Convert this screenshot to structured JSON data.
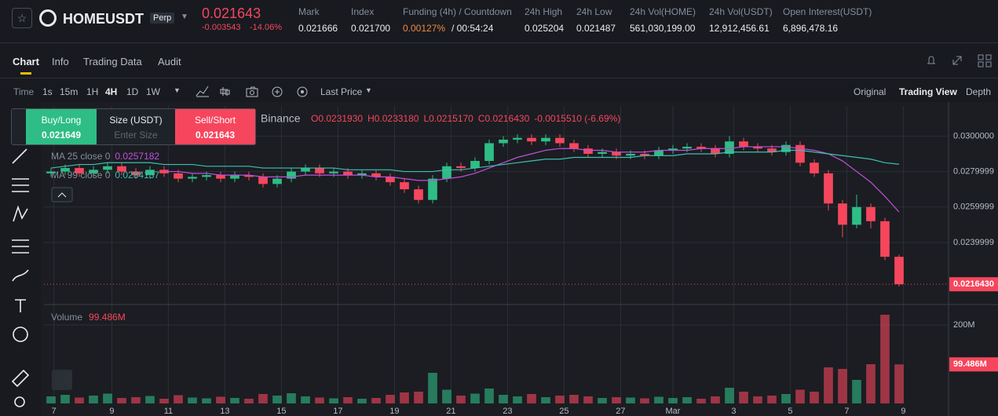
{
  "header": {
    "symbol": "HOMEUSDT",
    "badge": "Perp",
    "price": "0.021643",
    "change": "-0.003543",
    "change_pct": "-14.06%",
    "stats": [
      {
        "label": "Mark",
        "value": "0.021666"
      },
      {
        "label": "Index",
        "value": "0.021700"
      },
      {
        "label": "Funding (4h) / Countdown",
        "value": "0.00127%",
        "extra": "/ 00:54:24"
      },
      {
        "label": "24h High",
        "value": "0.025204"
      },
      {
        "label": "24h Low",
        "value": "0.021487"
      },
      {
        "label": "24h Vol(HOME)",
        "value": "561,030,199.00"
      },
      {
        "label": "24h Vol(USDT)",
        "value": "12,912,456.61"
      },
      {
        "label": "Open Interest(USDT)",
        "value": "6,896,478.16"
      }
    ]
  },
  "tabs": [
    "Chart",
    "Info",
    "Trading Data",
    "Audit"
  ],
  "toolbar": {
    "time": "Time",
    "intervals": [
      "1s",
      "15m",
      "1H",
      "4H",
      "1D",
      "1W"
    ],
    "price_type": "Last Price",
    "views": [
      "Original",
      "Trading View",
      "Depth"
    ]
  },
  "order_panel": {
    "buy": "Buy/Long",
    "buy_price": "0.021649",
    "size": "Size (USDT)",
    "size_placeholder": "Enter Size",
    "sell": "Sell/Short",
    "sell_price": "0.021643"
  },
  "chart_data": {
    "type": "candlestick",
    "up_color": "#2ebd85",
    "down_color": "#f6465d",
    "grid": true,
    "open": [
      0.0279,
      0.028,
      0.0282,
      0.0279,
      0.0281,
      0.0283,
      0.028,
      0.0278,
      0.0281,
      0.0279,
      0.0276,
      0.0277,
      0.0278,
      0.0276,
      0.0278,
      0.0277,
      0.0273,
      0.0276,
      0.028,
      0.0282,
      0.0279,
      0.028,
      0.0278,
      0.0279,
      0.0277,
      0.0274,
      0.027,
      0.0264,
      0.0276,
      0.0283,
      0.0282,
      0.0286,
      0.0296,
      0.0298,
      0.0299,
      0.0297,
      0.0299,
      0.0296,
      0.0293,
      0.029,
      0.0291,
      0.0289,
      0.029,
      0.0289,
      0.0292,
      0.0293,
      0.0294,
      0.0293,
      0.029,
      0.0297,
      0.0294,
      0.0293,
      0.0291,
      0.0295,
      0.0285,
      0.0279,
      0.0262,
      0.025,
      0.026,
      0.0252,
      0.023193
    ],
    "high": [
      0.0282,
      0.0284,
      0.0284,
      0.0283,
      0.0285,
      0.0285,
      0.0282,
      0.0283,
      0.0283,
      0.0281,
      0.0279,
      0.028,
      0.028,
      0.028,
      0.028,
      0.0279,
      0.0278,
      0.0282,
      0.0284,
      0.0284,
      0.0282,
      0.0282,
      0.0281,
      0.0281,
      0.0279,
      0.0276,
      0.0272,
      0.0278,
      0.0285,
      0.0285,
      0.0288,
      0.0298,
      0.03,
      0.0301,
      0.0301,
      0.0301,
      0.0301,
      0.0298,
      0.0295,
      0.0293,
      0.0293,
      0.0292,
      0.0292,
      0.0294,
      0.0295,
      0.0296,
      0.0296,
      0.0295,
      0.03,
      0.0299,
      0.0296,
      0.0295,
      0.0297,
      0.0297,
      0.0287,
      0.0281,
      0.0264,
      0.0267,
      0.0262,
      0.0254,
      0.023318
    ],
    "low": [
      0.0277,
      0.0278,
      0.0277,
      0.0277,
      0.0279,
      0.0278,
      0.0276,
      0.0276,
      0.0277,
      0.0274,
      0.0274,
      0.0275,
      0.0274,
      0.0274,
      0.0275,
      0.0271,
      0.0271,
      0.0274,
      0.0278,
      0.0277,
      0.0277,
      0.0276,
      0.0276,
      0.0275,
      0.0272,
      0.0268,
      0.0262,
      0.0262,
      0.0274,
      0.028,
      0.028,
      0.0284,
      0.0294,
      0.0296,
      0.0295,
      0.0295,
      0.0294,
      0.0291,
      0.0288,
      0.0288,
      0.0287,
      0.0287,
      0.0287,
      0.0287,
      0.029,
      0.0291,
      0.0291,
      0.0288,
      0.0288,
      0.0292,
      0.0291,
      0.0289,
      0.0289,
      0.0283,
      0.0277,
      0.0258,
      0.0243,
      0.0248,
      0.0248,
      0.023,
      0.021517
    ],
    "close": [
      0.028,
      0.0282,
      0.0279,
      0.0281,
      0.0283,
      0.028,
      0.0278,
      0.0281,
      0.0279,
      0.0276,
      0.0277,
      0.0278,
      0.0276,
      0.0278,
      0.0277,
      0.0273,
      0.0276,
      0.028,
      0.0282,
      0.0279,
      0.028,
      0.0278,
      0.0279,
      0.0277,
      0.0274,
      0.027,
      0.0264,
      0.0276,
      0.0283,
      0.0282,
      0.0286,
      0.0296,
      0.0298,
      0.0299,
      0.0297,
      0.0299,
      0.0296,
      0.0293,
      0.029,
      0.0291,
      0.0289,
      0.029,
      0.0289,
      0.0292,
      0.0293,
      0.0294,
      0.0293,
      0.029,
      0.0297,
      0.0294,
      0.0293,
      0.0291,
      0.0295,
      0.0285,
      0.0279,
      0.0262,
      0.025,
      0.026,
      0.0252,
      0.023193,
      0.021643
    ],
    "xlim": [
      -0.5,
      63.5
    ],
    "xticks": [
      {
        "value": 0.2,
        "label": "7"
      },
      {
        "value": 4.3,
        "label": "9"
      },
      {
        "value": 8.3,
        "label": "11"
      },
      {
        "value": 12.3,
        "label": "13"
      },
      {
        "value": 16.3,
        "label": "15"
      },
      {
        "value": 20.3,
        "label": "17"
      },
      {
        "value": 24.3,
        "label": "19"
      },
      {
        "value": 28.3,
        "label": "21"
      },
      {
        "value": 32.3,
        "label": "23"
      },
      {
        "value": 36.3,
        "label": "25"
      },
      {
        "value": 40.3,
        "label": "27"
      },
      {
        "value": 44,
        "label": "Mar"
      },
      {
        "value": 48.3,
        "label": "3"
      },
      {
        "value": 52.3,
        "label": "5"
      },
      {
        "value": 56.3,
        "label": "7"
      },
      {
        "value": 60.3,
        "label": "9"
      }
    ],
    "ylim": [
      0.0205,
      0.0317
    ],
    "yticks": [
      {
        "value": 0.03,
        "label": "0.0300000"
      },
      0.0279999,
      0.0259999,
      0.0239999
    ],
    "last_price_label": "0.0216430",
    "legend_text": {
      "source": "Binance",
      "open": "O0.0231930",
      "high": "H0.0233180",
      "low": "L0.0215170",
      "close": "C0.0216430",
      "change": "-0.0015510 (-6.69%)"
    },
    "series": [
      {
        "name": "MA 25 close 0",
        "color": "#c150d9",
        "values": [
          null,
          null,
          null,
          null,
          null,
          null,
          null,
          null,
          0.028,
          0.028,
          0.0279,
          0.0279,
          0.0278,
          0.0278,
          0.0278,
          0.0277,
          0.0277,
          0.0277,
          0.0278,
          0.0278,
          0.0278,
          0.0278,
          0.0278,
          0.0277,
          0.0277,
          0.0276,
          0.0275,
          0.0275,
          0.0276,
          0.0277,
          0.0279,
          0.0282,
          0.0285,
          0.0288,
          0.029,
          0.0292,
          0.0293,
          0.0293,
          0.0292,
          0.0292,
          0.0291,
          0.0291,
          0.0291,
          0.0292,
          0.0292,
          0.0292,
          0.0293,
          0.0293,
          0.0293,
          0.0294,
          0.0294,
          0.0294,
          0.0294,
          0.0293,
          0.0292,
          0.029,
          0.0286,
          0.028,
          0.0274,
          0.0266,
          0.0257182
        ]
      },
      {
        "name": "MA 99 close 0",
        "color": "#3fbfb3",
        "values": [
          0.0282,
          0.0283,
          0.0284,
          0.0284,
          0.0285,
          0.0285,
          0.0285,
          0.0285,
          0.0284,
          0.0284,
          0.0284,
          0.0283,
          0.0283,
          0.0283,
          0.0283,
          0.0282,
          0.0282,
          0.0282,
          0.0282,
          0.0282,
          0.0282,
          0.0281,
          0.0281,
          0.0281,
          0.0281,
          0.028,
          0.028,
          0.028,
          0.0281,
          0.0281,
          0.0282,
          0.0283,
          0.0284,
          0.0285,
          0.0286,
          0.0287,
          0.0287,
          0.0288,
          0.0288,
          0.0288,
          0.0288,
          0.0288,
          0.0289,
          0.0289,
          0.0289,
          0.029,
          0.029,
          0.029,
          0.0291,
          0.0291,
          0.0291,
          0.0291,
          0.0292,
          0.0292,
          0.0291,
          0.029,
          0.0289,
          0.0288,
          0.0287,
          0.0285,
          0.0284137
        ]
      }
    ],
    "volume": {
      "name": "Volume",
      "ylim": [
        0,
        252000000
      ],
      "yticks": [
        {
          "value": 200000000,
          "label": "200M"
        }
      ],
      "values": [
        18000000,
        22000000,
        15000000,
        20000000,
        25000000,
        14000000,
        16000000,
        19000000,
        12000000,
        21000000,
        15000000,
        13000000,
        17000000,
        14000000,
        12000000,
        24000000,
        20000000,
        26000000,
        18000000,
        15000000,
        13000000,
        16000000,
        12000000,
        14000000,
        22000000,
        28000000,
        30000000,
        78000000,
        35000000,
        20000000,
        25000000,
        38000000,
        22000000,
        18000000,
        24000000,
        16000000,
        20000000,
        22000000,
        18000000,
        14000000,
        16000000,
        15000000,
        13000000,
        17000000,
        14000000,
        16000000,
        12000000,
        18000000,
        40000000,
        30000000,
        18000000,
        20000000,
        24000000,
        35000000,
        30000000,
        92000000,
        88000000,
        60000000,
        100000000,
        226000000,
        99486000
      ],
      "value_labels": [
        null,
        null,
        null,
        null,
        null,
        null,
        null,
        null,
        null,
        null,
        null,
        null,
        null,
        null,
        null,
        null,
        null,
        null,
        null,
        null,
        null,
        null,
        null,
        null,
        null,
        null,
        null,
        null,
        null,
        null,
        null,
        null,
        null,
        null,
        null,
        null,
        null,
        null,
        null,
        null,
        null,
        null,
        null,
        null,
        null,
        null,
        null,
        null,
        null,
        null,
        null,
        null,
        null,
        null,
        null,
        null,
        null,
        null,
        null,
        null,
        "99.486M"
      ]
    }
  }
}
